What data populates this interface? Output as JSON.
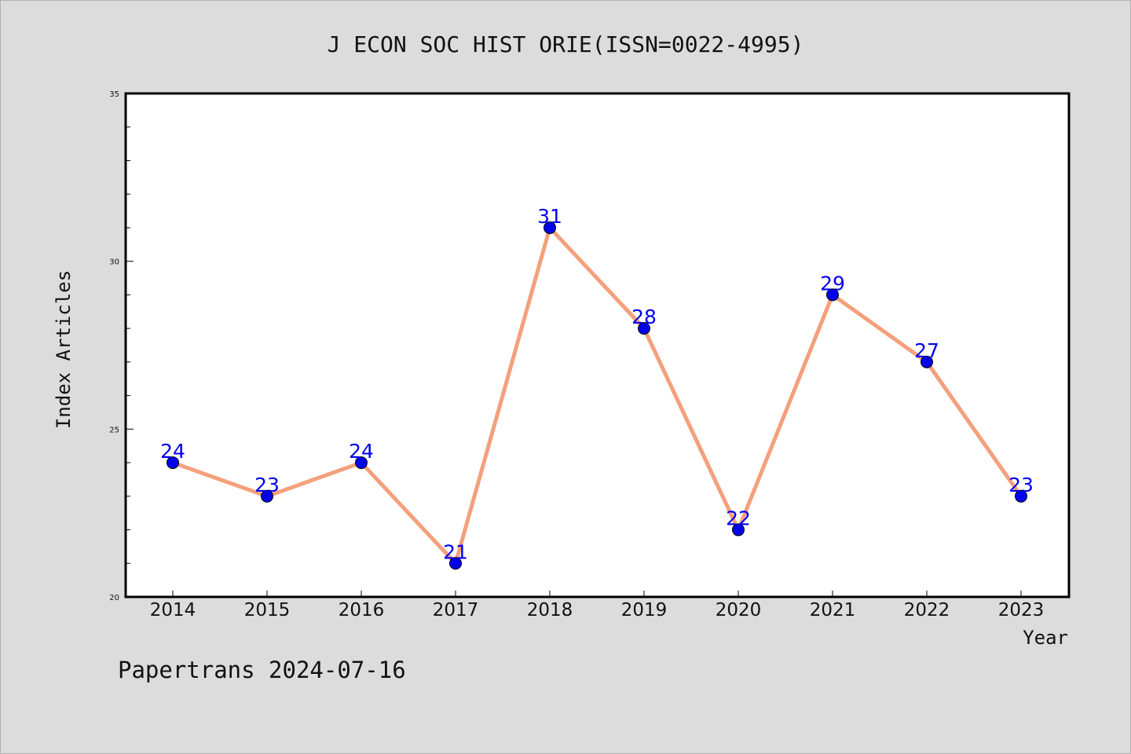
{
  "chart_data": {
    "type": "line",
    "title": "J ECON SOC HIST ORIE(ISSN=0022-4995)",
    "xlabel": "Year",
    "ylabel": "Index Articles",
    "categories": [
      "2014",
      "2015",
      "2016",
      "2017",
      "2018",
      "2019",
      "2020",
      "2021",
      "2022",
      "2023"
    ],
    "series": [
      {
        "values": [
          24,
          23,
          24,
          21,
          31,
          28,
          22,
          29,
          27,
          23
        ]
      }
    ],
    "ylim": [
      20,
      35
    ],
    "yticks": [
      "20",
      "25",
      "30",
      "35"
    ],
    "grid": false,
    "line_color": "#f4a07c",
    "marker_color": "#0000ee",
    "label_color": "#0000ee"
  },
  "footer": "Papertrans 2024-07-16"
}
